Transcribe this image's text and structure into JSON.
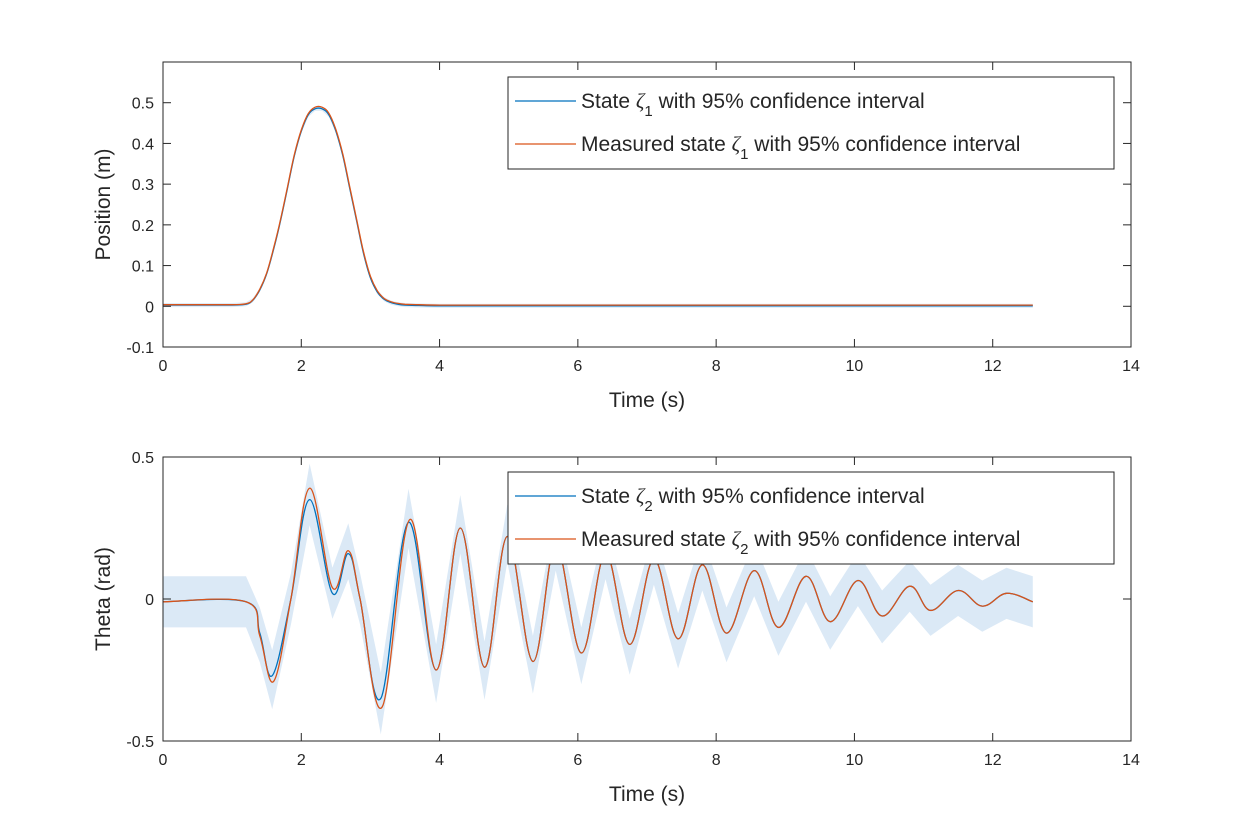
{
  "figure": {
    "background": "#ffffff",
    "colors": {
      "state": "#0072bd",
      "measured": "#d95319",
      "band": "#dbe9f6",
      "axis": "#262626"
    }
  },
  "chart_data": [
    {
      "type": "line",
      "xlabel": "Time (s)",
      "ylabel": "Position (m)",
      "xlim": [
        0,
        14
      ],
      "ylim": [
        -0.1,
        0.6
      ],
      "xticks": [
        "0",
        "2",
        "4",
        "6",
        "8",
        "10",
        "12",
        "14"
      ],
      "yticks": [
        "-0.1",
        "0",
        "0.1",
        "0.2",
        "0.3",
        "0.4",
        "0.5"
      ],
      "grid": false,
      "legend_position": "top-right",
      "confidence_band": [
        0.005,
        0.005
      ],
      "series": [
        {
          "name": "State ζ1 with 95% confidence interval",
          "legend_main": "State ",
          "legend_symbol": "ζ",
          "legend_sub": "1",
          "legend_rest": " with 95% confidence interval",
          "color": "#0072bd",
          "x": [
            0,
            0.5,
            1.0,
            1.2,
            1.3,
            1.4,
            1.5,
            1.6,
            1.7,
            1.8,
            1.9,
            2.0,
            2.1,
            2.2,
            2.3,
            2.4,
            2.5,
            2.6,
            2.7,
            2.8,
            2.9,
            3.0,
            3.1,
            3.2,
            3.3,
            3.4,
            3.5,
            3.7,
            4.0,
            5.0,
            6.0,
            8.0,
            10.0,
            12.0,
            12.58
          ],
          "y": [
            0.003,
            0.003,
            0.003,
            0.005,
            0.015,
            0.04,
            0.08,
            0.14,
            0.21,
            0.29,
            0.37,
            0.43,
            0.47,
            0.485,
            0.485,
            0.47,
            0.43,
            0.37,
            0.29,
            0.21,
            0.13,
            0.07,
            0.035,
            0.017,
            0.009,
            0.005,
            0.003,
            0.002,
            0.001,
            0.001,
            0.001,
            0.001,
            0.001,
            0.001,
            0.001
          ]
        },
        {
          "name": "Measured state ζ1 with 95% confidence interval",
          "legend_main": "Measured state ",
          "legend_symbol": "ζ",
          "legend_sub": "1",
          "legend_rest": " with 95% confidence interval",
          "color": "#d95319",
          "x": [
            0,
            0.5,
            1.0,
            1.2,
            1.3,
            1.4,
            1.5,
            1.6,
            1.7,
            1.8,
            1.9,
            2.0,
            2.1,
            2.2,
            2.3,
            2.4,
            2.5,
            2.6,
            2.7,
            2.8,
            2.9,
            3.0,
            3.1,
            3.2,
            3.3,
            3.4,
            3.5,
            3.7,
            4.0,
            5.0,
            6.0,
            8.0,
            10.0,
            12.0,
            12.58
          ],
          "y": [
            0.004,
            0.004,
            0.004,
            0.006,
            0.016,
            0.042,
            0.082,
            0.143,
            0.213,
            0.293,
            0.373,
            0.433,
            0.473,
            0.489,
            0.489,
            0.474,
            0.434,
            0.374,
            0.294,
            0.214,
            0.134,
            0.074,
            0.038,
            0.019,
            0.011,
            0.007,
            0.005,
            0.004,
            0.003,
            0.003,
            0.003,
            0.003,
            0.003,
            0.003,
            0.003
          ]
        }
      ]
    },
    {
      "type": "line",
      "xlabel": "Time (s)",
      "ylabel": "Theta (rad)",
      "xlim": [
        0,
        14
      ],
      "ylim": [
        -0.5,
        0.5
      ],
      "xticks": [
        "0",
        "2",
        "4",
        "6",
        "8",
        "10",
        "12",
        "14"
      ],
      "yticks": [
        "-0.5",
        "0",
        "0.5"
      ],
      "grid": false,
      "legend_position": "top-right",
      "band_half_width": 0.09,
      "series": [
        {
          "name": "State ζ2 with 95% confidence interval",
          "legend_main": "State ",
          "legend_symbol": "ζ",
          "legend_sub": "2",
          "legend_rest": " with 95% confidence interval",
          "color": "#0072bd",
          "x": [
            0,
            1.2,
            1.4,
            1.58,
            1.85,
            2.12,
            2.45,
            2.68,
            2.85,
            3.15,
            3.55,
            3.95,
            4.3,
            4.65,
            4.98,
            5.35,
            5.68,
            6.05,
            6.4,
            6.75,
            7.1,
            7.45,
            7.8,
            8.15,
            8.55,
            8.9,
            9.3,
            9.65,
            10.05,
            10.4,
            10.8,
            11.1,
            11.5,
            11.85,
            12.2,
            12.58
          ],
          "y": [
            -0.01,
            -0.01,
            -0.12,
            -0.27,
            0.0,
            0.35,
            0.02,
            0.16,
            0.0,
            -0.35,
            0.27,
            -0.25,
            0.25,
            -0.24,
            0.22,
            -0.22,
            0.19,
            -0.19,
            0.16,
            -0.16,
            0.14,
            -0.14,
            0.12,
            -0.12,
            0.1,
            -0.1,
            0.08,
            -0.08,
            0.065,
            -0.06,
            0.045,
            -0.04,
            0.03,
            -0.025,
            0.02,
            -0.01
          ]
        },
        {
          "name": "Measured state ζ2 with 95% confidence interval",
          "legend_main": "Measured state ",
          "legend_symbol": "ζ",
          "legend_sub": "2",
          "legend_rest": " with 95% confidence interval",
          "color": "#d95319",
          "x": [
            0,
            1.2,
            1.4,
            1.6,
            1.85,
            2.12,
            2.45,
            2.68,
            2.85,
            3.17,
            3.57,
            3.95,
            4.3,
            4.65,
            4.98,
            5.35,
            5.68,
            6.05,
            6.4,
            6.75,
            7.1,
            7.45,
            7.8,
            8.15,
            8.55,
            8.9,
            9.3,
            9.65,
            10.05,
            10.4,
            10.8,
            11.1,
            11.5,
            11.85,
            12.2,
            12.58
          ],
          "y": [
            -0.01,
            -0.01,
            -0.13,
            -0.29,
            0.0,
            0.39,
            0.04,
            0.17,
            0.0,
            -0.38,
            0.28,
            -0.25,
            0.25,
            -0.24,
            0.22,
            -0.22,
            0.19,
            -0.19,
            0.16,
            -0.16,
            0.14,
            -0.14,
            0.12,
            -0.12,
            0.1,
            -0.1,
            0.08,
            -0.08,
            0.065,
            -0.06,
            0.045,
            -0.04,
            0.03,
            -0.025,
            0.02,
            -0.01
          ]
        }
      ]
    }
  ]
}
